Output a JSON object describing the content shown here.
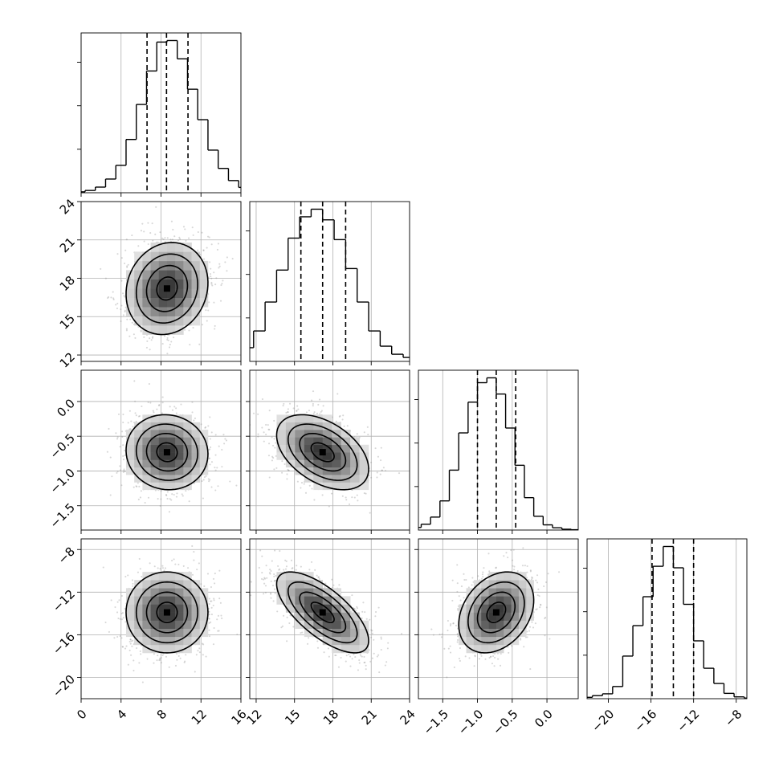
{
  "chart_data": {
    "type": "corner",
    "grid": true,
    "colors": {
      "points": "#8c8c8c",
      "lines": "#000000",
      "grid": "#b0b0b0"
    },
    "parameters": [
      {
        "range": [
          0,
          16
        ],
        "ticks": [
          0,
          4,
          8,
          12,
          16
        ],
        "tick_labels": [
          "0",
          "4",
          "8",
          "12",
          "16"
        ],
        "mean": 8.6,
        "sigma": 2.05,
        "quantiles": [
          6.6,
          8.55,
          10.7
        ]
      },
      {
        "range": [
          11.5,
          24
        ],
        "ticks": [
          12,
          15,
          18,
          21,
          24
        ],
        "tick_labels": [
          "12",
          "15",
          "18",
          "21",
          "24"
        ],
        "mean": 17.2,
        "sigma": 1.8,
        "quantiles": [
          15.5,
          17.2,
          19.0
        ]
      },
      {
        "range": [
          -1.85,
          0.45
        ],
        "ticks": [
          -1.5,
          -1.0,
          -0.5,
          0.0
        ],
        "tick_labels": [
          "−1.5",
          "−1.0",
          "−0.5",
          "0.0"
        ],
        "mean": -0.73,
        "sigma": 0.27,
        "quantiles": [
          -1.0,
          -0.73,
          -0.45
        ]
      },
      {
        "range": [
          -22,
          -7
        ],
        "ticks": [
          -20,
          -16,
          -12,
          -8
        ],
        "tick_labels": [
          "−20",
          "−16",
          "−12",
          "−8"
        ],
        "mean": -13.9,
        "sigma": 1.9,
        "quantiles": [
          -15.9,
          -13.9,
          -12.0
        ]
      }
    ],
    "histograms": [
      {
        "param": 0,
        "values": [
          0.2,
          0.6,
          1.5,
          3.7,
          9,
          18,
          35,
          58,
          80,
          99,
          100,
          88,
          68,
          48,
          28,
          16,
          8,
          3.5,
          1.2,
          0.4
        ]
      },
      {
        "param": 1,
        "values": [
          1,
          2.2,
          4.2,
          9,
          20,
          39,
          60,
          81,
          95,
          100,
          93,
          80,
          61,
          39,
          20,
          10,
          4.7,
          2.6,
          1.2,
          0.4
        ]
      },
      {
        "param": 2,
        "values": [
          0.6,
          1.6,
          3.6,
          8,
          18,
          37,
          60,
          79,
          91,
          94,
          84,
          63,
          40,
          20,
          8.5,
          3.2,
          1.4,
          0.5,
          0.2,
          0
        ]
      },
      {
        "param": 3,
        "values": [
          0.3,
          0.9,
          2,
          3.2,
          8,
          28,
          48,
          67,
          87,
          100,
          86,
          62,
          38,
          20,
          10,
          3.5,
          1.2,
          0.4,
          0.1,
          0
        ]
      }
    ],
    "correlations": [
      {
        "x": 0,
        "y": 1,
        "rho": 0.12
      },
      {
        "x": 0,
        "y": 2,
        "rho": -0.05
      },
      {
        "x": 1,
        "y": 2,
        "rho": -0.45
      },
      {
        "x": 0,
        "y": 3,
        "rho": 0.0
      },
      {
        "x": 1,
        "y": 3,
        "rho": -0.7
      },
      {
        "x": 2,
        "y": 3,
        "rho": 0.3
      }
    ],
    "contour_sigmas": [
      0.5,
      1.0,
      1.5,
      2.0
    ]
  }
}
